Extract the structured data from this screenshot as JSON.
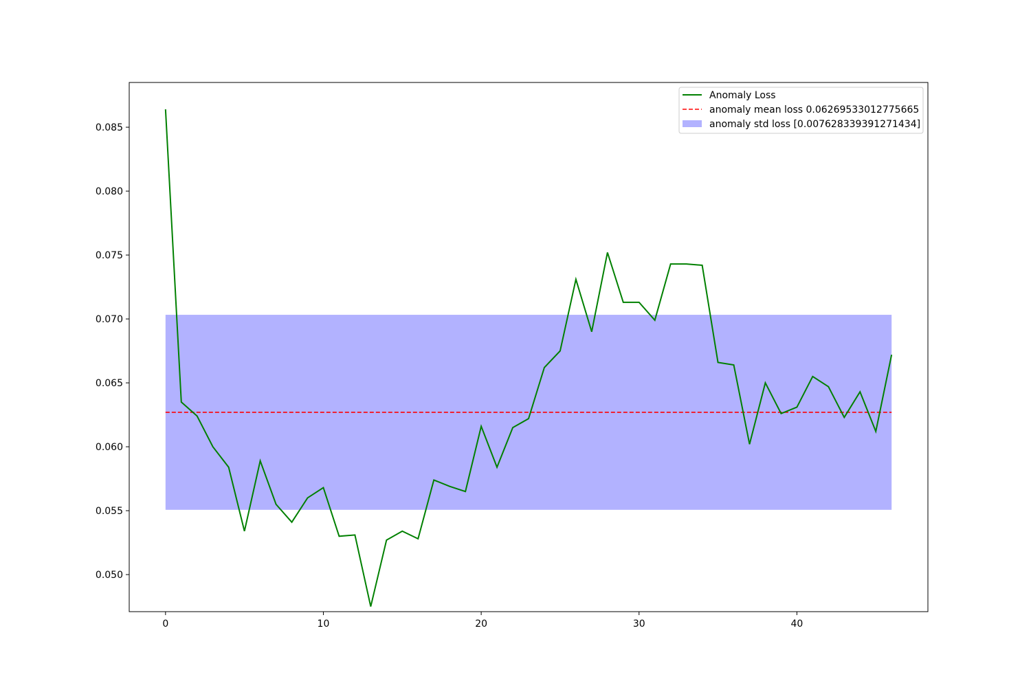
{
  "chart_data": {
    "type": "line",
    "title": "",
    "xlabel": "",
    "ylabel": "",
    "xlim": [
      -2.3,
      48.3
    ],
    "ylim": [
      0.0471,
      0.0885
    ],
    "x_ticks": [
      0,
      10,
      20,
      30,
      40
    ],
    "y_ticks": [
      0.05,
      0.055,
      0.06,
      0.065,
      0.07,
      0.075,
      0.08,
      0.085
    ],
    "x_tick_labels": [
      "0",
      "10",
      "20",
      "30",
      "40"
    ],
    "y_tick_labels": [
      "0.050",
      "0.055",
      "0.060",
      "0.065",
      "0.070",
      "0.075",
      "0.080",
      "0.085"
    ],
    "grid": false,
    "legend_position": "top-right",
    "series": [
      {
        "name": "Anomaly Loss",
        "kind": "line",
        "color": "#008000",
        "x": [
          0,
          1,
          2,
          3,
          4,
          5,
          6,
          7,
          8,
          9,
          10,
          11,
          12,
          13,
          14,
          15,
          16,
          17,
          18,
          19,
          20,
          21,
          22,
          23,
          24,
          25,
          26,
          27,
          28,
          29,
          30,
          31,
          32,
          33,
          34,
          35,
          36,
          37,
          38,
          39,
          40,
          41,
          42,
          43,
          44,
          45,
          46
        ],
        "values": [
          0.0864,
          0.0635,
          0.0624,
          0.06,
          0.0584,
          0.0534,
          0.0589,
          0.0555,
          0.0541,
          0.056,
          0.0568,
          0.053,
          0.0531,
          0.0475,
          0.0527,
          0.0534,
          0.0528,
          0.0574,
          0.0569,
          0.0565,
          0.0616,
          0.0584,
          0.0615,
          0.0622,
          0.0662,
          0.0675,
          0.0731,
          0.069,
          0.0752,
          0.0713,
          0.0713,
          0.0699,
          0.0743,
          0.0743,
          0.0742,
          0.0666,
          0.0664,
          0.0602,
          0.065,
          0.0626,
          0.0631,
          0.0655,
          0.0647,
          0.0623,
          0.0643,
          0.0612,
          0.0672
        ]
      },
      {
        "name": "anomaly mean loss 0.06269533012775665",
        "kind": "hline-dashed",
        "color": "#ff0000",
        "y": 0.06269533012775665,
        "x_range": [
          0,
          46
        ]
      },
      {
        "name": "anomaly std loss [0.007628339391271434]",
        "kind": "band",
        "color": "#b2b2ff",
        "y_low": 0.05506699073648522,
        "y_high": 0.07032366951902808,
        "x_range": [
          0,
          46
        ]
      }
    ]
  }
}
